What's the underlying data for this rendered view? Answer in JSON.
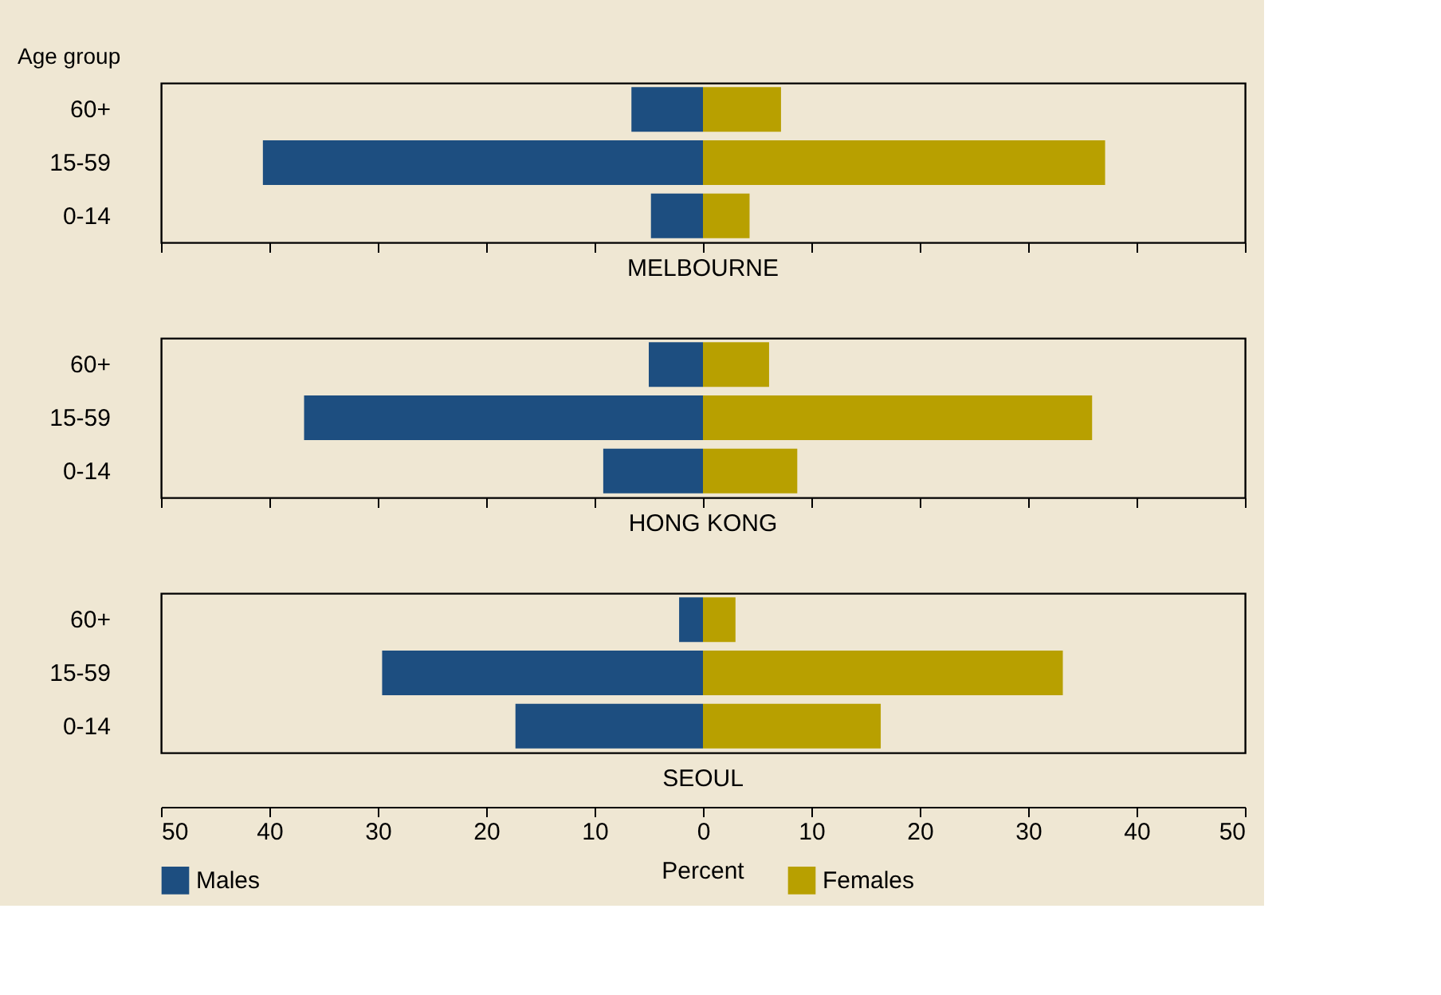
{
  "chart_data": [
    {
      "type": "bar",
      "orientation": "horizontal",
      "stacked": true,
      "title": "MELBOURNE",
      "ylabel": "Age group",
      "categories": [
        "60+",
        "15-59",
        "0-14"
      ],
      "series": [
        {
          "color": "#1d4e80",
          "values": [
            -6.6,
            -40.6,
            -4.8
          ]
        },
        {
          "color": "#b8a000",
          "values": [
            7.2,
            37.1,
            4.3
          ]
        }
      ],
      "xlim": [
        -50,
        50
      ],
      "xticks": [
        {
          "value": -50,
          "label": null
        },
        {
          "value": -40,
          "label": null
        },
        {
          "value": -30,
          "label": null
        },
        {
          "value": -20,
          "label": null
        },
        {
          "value": -10,
          "label": null
        },
        {
          "value": 0,
          "label": null
        },
        {
          "value": 10,
          "label": null
        },
        {
          "value": 20,
          "label": null
        },
        {
          "value": 30,
          "label": null
        },
        {
          "value": 40,
          "label": null
        },
        {
          "value": 50,
          "label": null
        }
      ],
      "tick_labels": "y",
      "grid": false
    },
    {
      "type": "bar",
      "orientation": "horizontal",
      "stacked": true,
      "title": "HONG KONG",
      "categories": [
        "60+",
        "15-59",
        "0-14"
      ],
      "series": [
        {
          "color": "#1d4e80",
          "values": [
            -5.0,
            -36.8,
            -9.2
          ]
        },
        {
          "color": "#b8a000",
          "values": [
            6.1,
            35.9,
            8.7
          ]
        }
      ],
      "xlim": [
        -50,
        50
      ],
      "xticks": [
        {
          "value": -50,
          "label": null
        },
        {
          "value": -40,
          "label": null
        },
        {
          "value": -30,
          "label": null
        },
        {
          "value": -20,
          "label": null
        },
        {
          "value": -10,
          "label": null
        },
        {
          "value": 0,
          "label": null
        },
        {
          "value": 10,
          "label": null
        },
        {
          "value": 20,
          "label": null
        },
        {
          "value": 30,
          "label": null
        },
        {
          "value": 40,
          "label": null
        },
        {
          "value": 50,
          "label": null
        }
      ],
      "tick_labels": "y",
      "grid": false
    },
    {
      "type": "bar",
      "orientation": "horizontal",
      "stacked": true,
      "title": "SEOUL",
      "xlabel": "Percent",
      "categories": [
        "60+",
        "15-59",
        "0-14"
      ],
      "series": [
        {
          "name": "Males",
          "color": "#1d4e80",
          "values": [
            -2.2,
            -29.6,
            -17.3
          ]
        },
        {
          "name": "Females",
          "color": "#b8a000",
          "values": [
            3.0,
            33.2,
            16.4
          ]
        }
      ],
      "xlim": [
        -50,
        50
      ],
      "xticks": [
        {
          "value": -50,
          "label": "50"
        },
        {
          "value": -40,
          "label": "40"
        },
        {
          "value": -30,
          "label": "30"
        },
        {
          "value": -20,
          "label": "20"
        },
        {
          "value": -10,
          "label": "10"
        },
        0,
        10,
        20,
        30,
        40,
        50
      ],
      "legend": "bottom",
      "grid": false
    }
  ]
}
